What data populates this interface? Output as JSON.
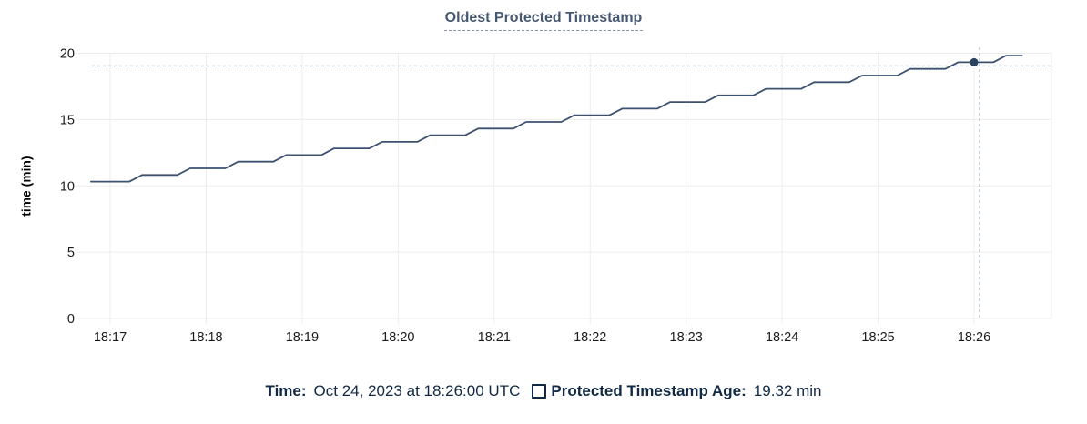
{
  "title": "Oldest Protected Timestamp",
  "legend": {
    "time_label": "Time:",
    "time_value": "Oct 24, 2023 at 18:26:00 UTC",
    "series_label": "Protected Timestamp Age:",
    "series_value": "19.32 min"
  },
  "colors": {
    "line": "#3d5170",
    "dot": "#2b4160",
    "grid": "#ececec",
    "crosshair": "#a3b9c8",
    "title": "#475872",
    "title_underline": "#8a99b0",
    "legend_text": "#112944",
    "axis_text": "#1c1c1c"
  },
  "chart_data": {
    "type": "line",
    "title": "Oldest Protected Timestamp",
    "xlabel": "",
    "ylabel": "time (min)",
    "ylim": [
      0,
      20
    ],
    "y_ticks": [
      0,
      5,
      10,
      15,
      20
    ],
    "x_ticks": [
      "18:17",
      "18:18",
      "18:19",
      "18:20",
      "18:21",
      "18:22",
      "18:23",
      "18:24",
      "18:25",
      "18:26"
    ],
    "x_tick_seconds": [
      0,
      60,
      120,
      180,
      240,
      300,
      360,
      420,
      480,
      540
    ],
    "grid": true,
    "legend_position": "bottom",
    "series": [
      {
        "name": "Protected Timestamp Age",
        "unit": "min",
        "points": [
          [
            -12,
            10.32
          ],
          [
            12,
            10.32
          ],
          [
            20,
            10.82
          ],
          [
            42,
            10.82
          ],
          [
            50,
            11.32
          ],
          [
            72,
            11.32
          ],
          [
            80,
            11.82
          ],
          [
            102,
            11.82
          ],
          [
            110,
            12.32
          ],
          [
            132,
            12.32
          ],
          [
            140,
            12.82
          ],
          [
            162,
            12.82
          ],
          [
            170,
            13.32
          ],
          [
            192,
            13.32
          ],
          [
            200,
            13.82
          ],
          [
            222,
            13.82
          ],
          [
            230,
            14.32
          ],
          [
            252,
            14.32
          ],
          [
            260,
            14.82
          ],
          [
            282,
            14.82
          ],
          [
            290,
            15.32
          ],
          [
            312,
            15.32
          ],
          [
            320,
            15.82
          ],
          [
            342,
            15.82
          ],
          [
            350,
            16.32
          ],
          [
            372,
            16.32
          ],
          [
            380,
            16.82
          ],
          [
            402,
            16.82
          ],
          [
            410,
            17.32
          ],
          [
            432,
            17.32
          ],
          [
            440,
            17.82
          ],
          [
            462,
            17.82
          ],
          [
            470,
            18.32
          ],
          [
            492,
            18.32
          ],
          [
            500,
            18.82
          ],
          [
            522,
            18.82
          ],
          [
            530,
            19.32
          ],
          [
            552,
            19.32
          ],
          [
            560,
            19.82
          ],
          [
            570,
            19.82
          ]
        ]
      }
    ],
    "hover": {
      "x_seconds": 540,
      "time": "Oct 24, 2023 at 18:26:00 UTC",
      "value_min": 19.32
    }
  }
}
